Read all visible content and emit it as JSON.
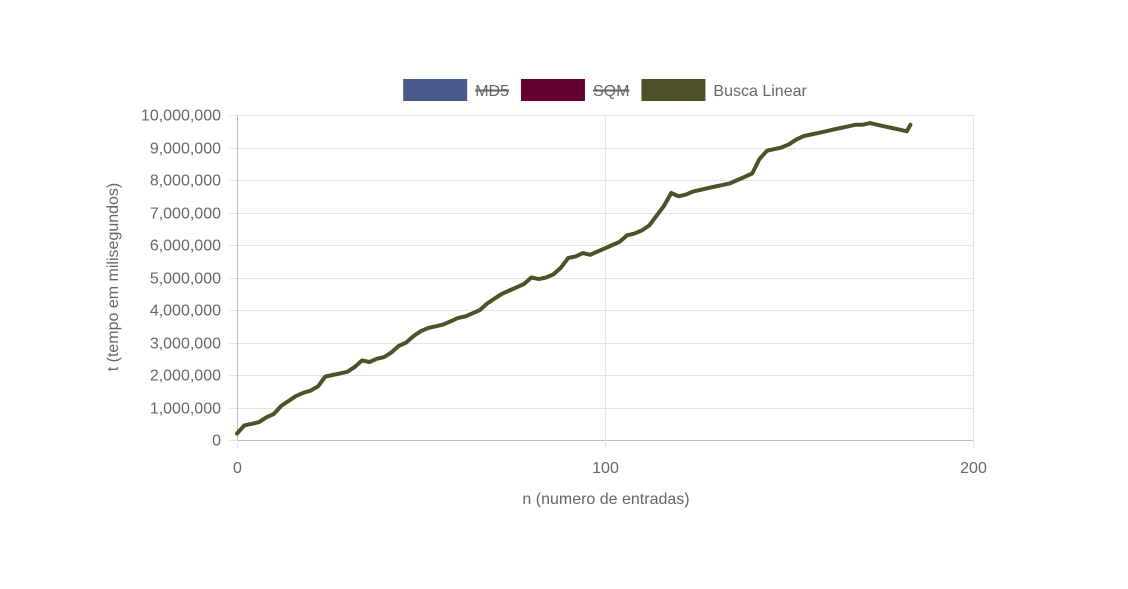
{
  "chart_data": {
    "type": "line",
    "legend": {
      "placement": "top-center",
      "items": [
        {
          "label": "MD5",
          "color": "#4a5a8a",
          "hidden": true
        },
        {
          "label": "SQM",
          "color": "#640032",
          "hidden": true
        },
        {
          "label": "Busca Linear",
          "color": "#4e5128",
          "hidden": false
        }
      ]
    },
    "xlabel": "n (numero de entradas)",
    "ylabel": "t (tempo em milisegundos)",
    "xlim": [
      0,
      200
    ],
    "ylim": [
      0,
      10000000
    ],
    "x_ticks": [
      0,
      100,
      200
    ],
    "x_tick_labels": [
      "0",
      "100",
      "200"
    ],
    "y_ticks": [
      0,
      1000000,
      2000000,
      3000000,
      4000000,
      5000000,
      6000000,
      7000000,
      8000000,
      9000000,
      10000000
    ],
    "y_tick_labels": [
      "0",
      "1,000,000",
      "2,000,000",
      "3,000,000",
      "4,000,000",
      "5,000,000",
      "6,000,000",
      "7,000,000",
      "8,000,000",
      "9,000,000",
      "10,000,000"
    ],
    "grid": true,
    "series": [
      {
        "name": "Busca Linear",
        "color": "#4e5128",
        "x": [
          0,
          2,
          4,
          6,
          8,
          10,
          12,
          14,
          16,
          18,
          20,
          22,
          24,
          26,
          28,
          30,
          32,
          34,
          36,
          38,
          40,
          42,
          44,
          46,
          48,
          50,
          52,
          54,
          56,
          58,
          60,
          62,
          64,
          66,
          68,
          70,
          72,
          74,
          76,
          78,
          80,
          82,
          84,
          86,
          88,
          90,
          92,
          94,
          96,
          98,
          100,
          102,
          104,
          106,
          108,
          110,
          112,
          114,
          116,
          118,
          120,
          122,
          124,
          126,
          128,
          130,
          132,
          134,
          136,
          138,
          140,
          142,
          144,
          146,
          148,
          150,
          152,
          154,
          156,
          158,
          160,
          162,
          164,
          166,
          168,
          170,
          172,
          174,
          176,
          178,
          180,
          182,
          183
        ],
        "y": [
          200000,
          450000,
          500000,
          550000,
          700000,
          800000,
          1050000,
          1200000,
          1350000,
          1450000,
          1520000,
          1650000,
          1950000,
          2000000,
          2050000,
          2100000,
          2250000,
          2450000,
          2400000,
          2500000,
          2550000,
          2700000,
          2900000,
          3000000,
          3200000,
          3350000,
          3450000,
          3500000,
          3550000,
          3650000,
          3750000,
          3800000,
          3900000,
          4000000,
          4200000,
          4350000,
          4500000,
          4600000,
          4700000,
          4800000,
          5000000,
          4950000,
          5000000,
          5100000,
          5300000,
          5600000,
          5650000,
          5750000,
          5700000,
          5800000,
          5900000,
          6000000,
          6100000,
          6300000,
          6350000,
          6450000,
          6600000,
          6900000,
          7200000,
          7600000,
          7500000,
          7550000,
          7650000,
          7700000,
          7750000,
          7800000,
          7850000,
          7900000,
          8000000,
          8100000,
          8200000,
          8650000,
          8900000,
          8950000,
          9000000,
          9100000,
          9250000,
          9350000,
          9400000,
          9450000,
          9500000,
          9550000,
          9600000,
          9650000,
          9700000,
          9700000,
          9750000,
          9700000,
          9650000,
          9600000,
          9550000,
          9500000,
          9700000
        ]
      }
    ]
  }
}
